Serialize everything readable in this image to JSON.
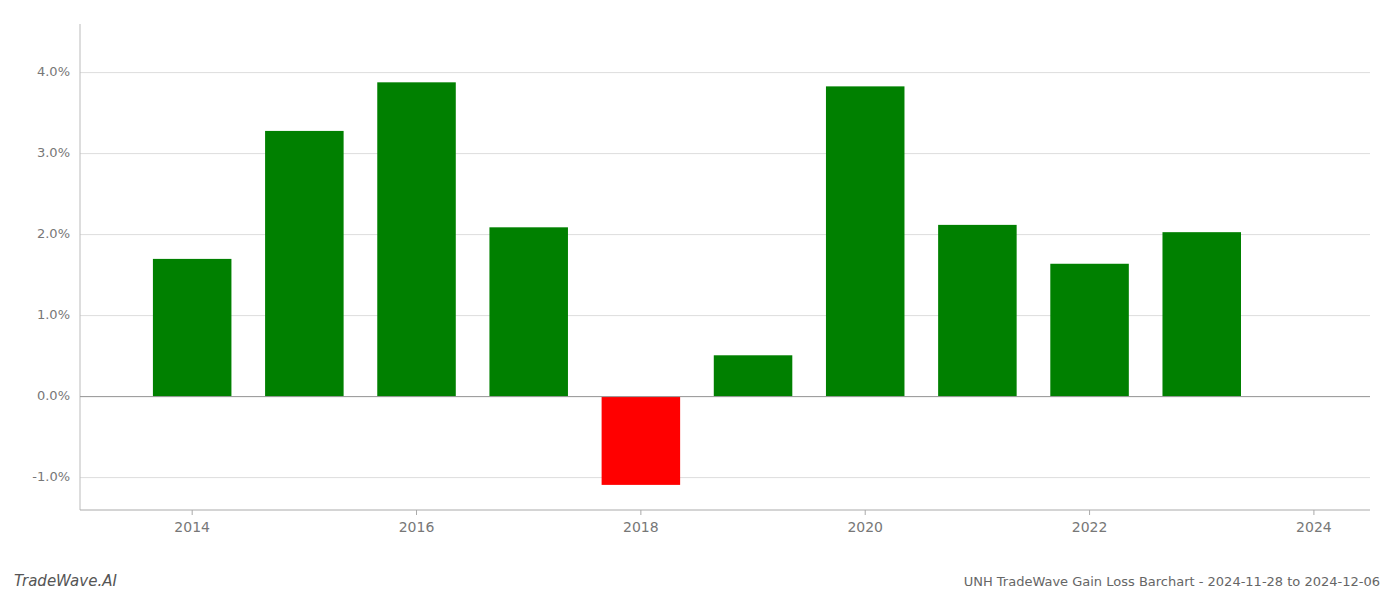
{
  "chart_data": {
    "type": "bar",
    "title": "UNH TradeWave Gain Loss Barchart - 2024-11-28 to 2024-12-06",
    "annotations": [
      "TradeWave.AI"
    ],
    "x": [
      2014,
      2015,
      2016,
      2017,
      2018,
      2019,
      2020,
      2021,
      2022,
      2023
    ],
    "values": [
      0.017,
      0.0328,
      0.0388,
      0.0209,
      -0.0109,
      0.0051,
      0.0383,
      0.0212,
      0.0164,
      0.0203
    ],
    "colors": [
      "#008000",
      "#008000",
      "#008000",
      "#008000",
      "#ff0000",
      "#008000",
      "#008000",
      "#008000",
      "#008000",
      "#008000"
    ],
    "xlim": [
      2013.0,
      2024.5
    ],
    "xticks": [
      2014,
      2016,
      2018,
      2020,
      2022,
      2024
    ],
    "ylim": [
      -0.014,
      0.046
    ],
    "yticks": [
      {
        "value": -0.01,
        "label": "-1.0%"
      },
      {
        "value": 0.0,
        "label": "0.0%"
      },
      {
        "value": 0.01,
        "label": "1.0%"
      },
      {
        "value": 0.02,
        "label": "2.0%"
      },
      {
        "value": 0.03,
        "label": "3.0%"
      },
      {
        "value": 0.04,
        "label": "4.0%"
      }
    ],
    "grid": true
  }
}
